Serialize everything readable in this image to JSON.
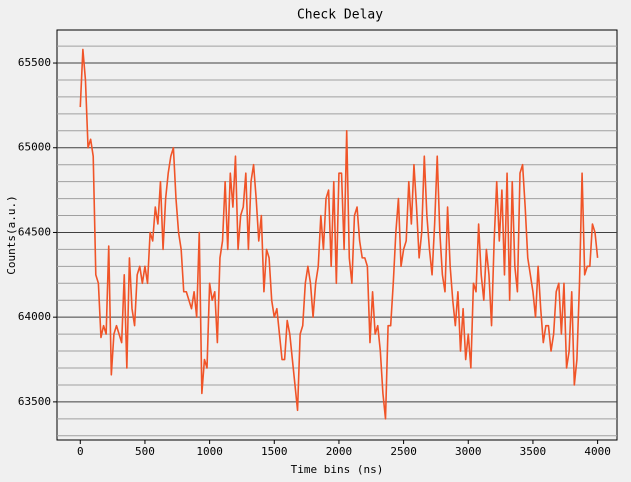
{
  "chart_data": {
    "type": "line",
    "title": "Check Delay",
    "x_label": "Time bins (ns)",
    "y_label": "Counts(a.u.)",
    "xlim": [
      -180,
      4150
    ],
    "ylim": [
      63275,
      65695
    ],
    "xticks": [
      0,
      500,
      1000,
      1500,
      2000,
      2500,
      3000,
      3500,
      4000
    ],
    "yticks": [
      63500,
      64000,
      64500,
      65000,
      65500
    ],
    "minor_yticks": [
      63300,
      63400,
      63600,
      63700,
      63800,
      63900,
      64100,
      64200,
      64300,
      64400,
      64600,
      64700,
      64800,
      64900,
      65100,
      65200,
      65300,
      65400,
      65600
    ],
    "grid": true,
    "series": [
      {
        "name": "Check Delay",
        "color": "#f05428",
        "x": [
          0,
          20,
          40,
          60,
          80,
          100,
          120,
          140,
          160,
          180,
          200,
          220,
          240,
          260,
          280,
          300,
          320,
          340,
          360,
          380,
          400,
          420,
          440,
          460,
          480,
          500,
          520,
          540,
          560,
          580,
          600,
          620,
          640,
          660,
          680,
          700,
          720,
          740,
          760,
          780,
          800,
          820,
          840,
          860,
          880,
          900,
          920,
          940,
          960,
          980,
          1000,
          1020,
          1040,
          1060,
          1080,
          1100,
          1120,
          1140,
          1160,
          1180,
          1200,
          1220,
          1240,
          1260,
          1280,
          1300,
          1320,
          1340,
          1360,
          1380,
          1400,
          1420,
          1440,
          1460,
          1480,
          1500,
          1520,
          1540,
          1560,
          1580,
          1600,
          1620,
          1640,
          1660,
          1680,
          1700,
          1720,
          1740,
          1760,
          1780,
          1800,
          1820,
          1840,
          1860,
          1880,
          1900,
          1920,
          1940,
          1960,
          1980,
          2000,
          2020,
          2040,
          2060,
          2080,
          2100,
          2120,
          2140,
          2160,
          2180,
          2200,
          2220,
          2240,
          2260,
          2280,
          2300,
          2320,
          2340,
          2360,
          2380,
          2400,
          2420,
          2440,
          2460,
          2480,
          2500,
          2520,
          2540,
          2560,
          2580,
          2600,
          2620,
          2640,
          2660,
          2680,
          2700,
          2720,
          2740,
          2760,
          2780,
          2800,
          2820,
          2840,
          2860,
          2880,
          2900,
          2920,
          2940,
          2960,
          2980,
          3000,
          3020,
          3040,
          3060,
          3080,
          3100,
          3120,
          3140,
          3160,
          3180,
          3200,
          3220,
          3240,
          3260,
          3280,
          3300,
          3320,
          3340,
          3360,
          3380,
          3400,
          3420,
          3440,
          3460,
          3480,
          3500,
          3520,
          3540,
          3560,
          3580,
          3600,
          3620,
          3640,
          3660,
          3680,
          3700,
          3720,
          3740,
          3760,
          3780,
          3800,
          3820,
          3840,
          3860,
          3880,
          3900,
          3920,
          3940,
          3960,
          3980,
          4000
        ],
        "values": [
          65240,
          65580,
          65400,
          65000,
          65050,
          64950,
          64250,
          64200,
          63880,
          63950,
          63900,
          64420,
          63660,
          63900,
          63950,
          63900,
          63850,
          64250,
          63700,
          64350,
          64050,
          63950,
          64250,
          64300,
          64200,
          64300,
          64200,
          64500,
          64450,
          64650,
          64550,
          64800,
          64400,
          64700,
          64850,
          64950,
          65000,
          64700,
          64500,
          64400,
          64150,
          64150,
          64100,
          64050,
          64150,
          64000,
          64500,
          63550,
          63750,
          63700,
          64200,
          64100,
          64150,
          63850,
          64350,
          64450,
          64800,
          64400,
          64850,
          64650,
          64950,
          64400,
          64600,
          64650,
          64850,
          64400,
          64800,
          64900,
          64700,
          64450,
          64600,
          64150,
          64400,
          64350,
          64100,
          64000,
          64050,
          63900,
          63750,
          63750,
          63980,
          63900,
          63750,
          63600,
          63450,
          63900,
          63950,
          64200,
          64300,
          64200,
          64000,
          64200,
          64300,
          64600,
          64400,
          64700,
          64750,
          64300,
          64800,
          64200,
          64850,
          64850,
          64400,
          65100,
          64350,
          64200,
          64600,
          64650,
          64450,
          64350,
          64350,
          64300,
          63850,
          64150,
          63900,
          63950,
          63800,
          63550,
          63400,
          63950,
          63950,
          64200,
          64500,
          64700,
          64300,
          64400,
          64450,
          64800,
          64550,
          64900,
          64650,
          64350,
          64500,
          64950,
          64600,
          64400,
          64250,
          64550,
          64950,
          64500,
          64250,
          64150,
          64650,
          64300,
          64100,
          63950,
          64150,
          63800,
          64050,
          63750,
          63900,
          63700,
          64200,
          64150,
          64550,
          64250,
          64100,
          64400,
          64250,
          63950,
          64450,
          64800,
          64450,
          64750,
          64250,
          64850,
          64100,
          64800,
          64300,
          64150,
          64850,
          64900,
          64650,
          64350,
          64250,
          64150,
          64000,
          64300,
          64050,
          63850,
          63950,
          63950,
          63800,
          63900,
          64150,
          64200,
          63900,
          64200,
          63700,
          63800,
          64150,
          63600,
          63750,
          64200,
          64850,
          64250,
          64300,
          64300,
          64550,
          64500,
          64350
        ]
      }
    ]
  }
}
